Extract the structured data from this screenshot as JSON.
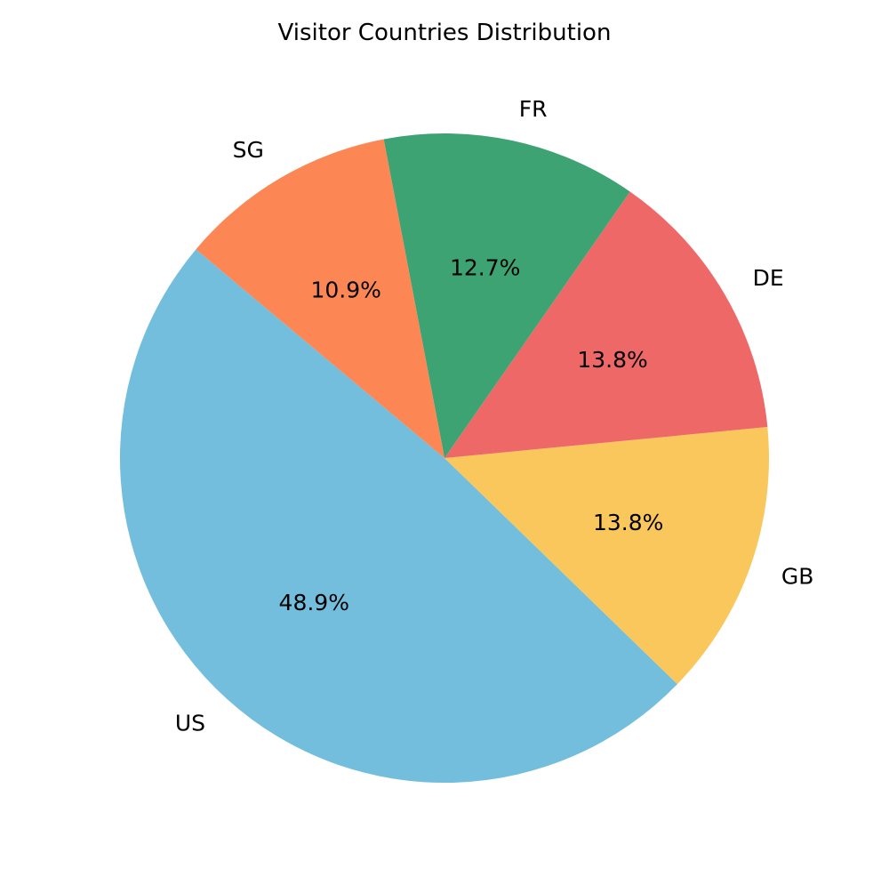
{
  "chart_data": {
    "type": "pie",
    "title": "Visitor Countries Distribution",
    "start_angle_deg": 140,
    "direction": "counterclockwise",
    "slices": [
      {
        "label": "US",
        "value": 48.9,
        "pct_label": "48.9%",
        "color": "#74BEDD"
      },
      {
        "label": "GB",
        "value": 13.8,
        "pct_label": "13.8%",
        "color": "#F9C75B"
      },
      {
        "label": "DE",
        "value": 13.8,
        "pct_label": "13.8%",
        "color": "#EE6868"
      },
      {
        "label": "FR",
        "value": 12.7,
        "pct_label": "12.7%",
        "color": "#3DA372"
      },
      {
        "label": "SG",
        "value": 10.9,
        "pct_label": "10.9%",
        "color": "#FC8654"
      }
    ]
  }
}
